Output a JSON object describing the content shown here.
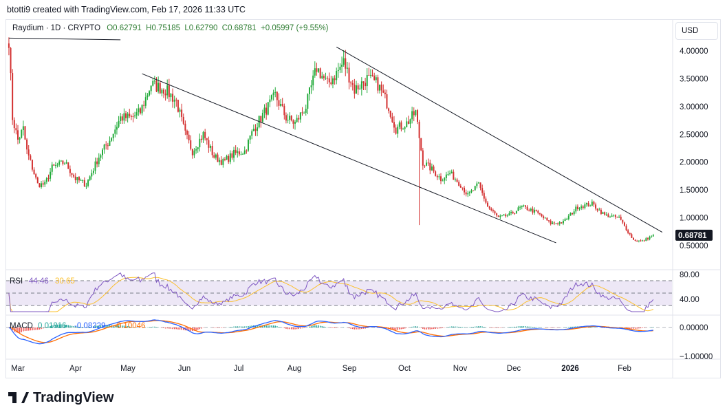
{
  "credit": "btotti9 created with TradingView.com, Feb 17, 2026 11:33 UTC",
  "legend": {
    "symbol": "Raydium · 1D · CRYPTO",
    "open": "O0.62791",
    "high": "H0.75185",
    "low": "L0.62790",
    "close": "C0.68781",
    "change": "+0.05997 (+9.55%)"
  },
  "currency_button": "USD",
  "last_price_label": "0.68781",
  "price_axis": [
    "4.00000",
    "3.50000",
    "3.00000",
    "2.50000",
    "2.00000",
    "1.50000",
    "1.00000",
    "0.50000"
  ],
  "rsi": {
    "label": "RSI",
    "value": "44.46",
    "ma_value": "30.65",
    "axis": [
      "80.00",
      "40.00"
    ],
    "levels": [
      70,
      50,
      30
    ]
  },
  "macd": {
    "label": "MACD",
    "hist": "0.01816",
    "macd": "-0.08229",
    "signal": "-0.10046",
    "axis": [
      "0.00000",
      "−1.00000"
    ]
  },
  "time_axis": [
    "Mar",
    "Apr",
    "May",
    "Jun",
    "Jul",
    "Aug",
    "Sep",
    "Oct",
    "Nov",
    "Dec",
    "2026",
    "Feb"
  ],
  "logo": "TradingView",
  "colors": {
    "up": "#22ab3a",
    "down": "#d32f2f",
    "rsi": "#7e57c2",
    "rsi_ma": "#fbc02d",
    "macd": "#2962ff",
    "signal": "#ff6d00",
    "rsi_band": "#ede7f6"
  },
  "chart_data": {
    "type": "candlestick",
    "symbol": "Raydium",
    "interval": "1D",
    "approx_close": [
      [
        "2025-02-24",
        4.2
      ],
      [
        "2025-02-26",
        2.8
      ],
      [
        "2025-03-01",
        2.4
      ],
      [
        "2025-03-04",
        2.6
      ],
      [
        "2025-03-06",
        2.2
      ],
      [
        "2025-03-12",
        1.6
      ],
      [
        "2025-03-16",
        1.6
      ],
      [
        "2025-03-20",
        1.9
      ],
      [
        "2025-03-27",
        2.0
      ],
      [
        "2025-04-02",
        1.7
      ],
      [
        "2025-04-08",
        1.6
      ],
      [
        "2025-04-15",
        2.1
      ],
      [
        "2025-04-21",
        2.4
      ],
      [
        "2025-04-27",
        2.8
      ],
      [
        "2025-05-03",
        2.8
      ],
      [
        "2025-05-08",
        2.9
      ],
      [
        "2025-05-14",
        3.4
      ],
      [
        "2025-05-22",
        3.3
      ],
      [
        "2025-05-28",
        3.1
      ],
      [
        "2025-06-02",
        2.5
      ],
      [
        "2025-06-06",
        2.2
      ],
      [
        "2025-06-12",
        2.5
      ],
      [
        "2025-06-18",
        2.1
      ],
      [
        "2025-06-23",
        2.0
      ],
      [
        "2025-06-29",
        2.15
      ],
      [
        "2025-07-05",
        2.2
      ],
      [
        "2025-07-10",
        2.6
      ],
      [
        "2025-07-16",
        2.9
      ],
      [
        "2025-07-22",
        3.2
      ],
      [
        "2025-07-28",
        2.8
      ],
      [
        "2025-08-02",
        2.7
      ],
      [
        "2025-08-08",
        3.0
      ],
      [
        "2025-08-14",
        3.7
      ],
      [
        "2025-08-20",
        3.4
      ],
      [
        "2025-08-25",
        3.6
      ],
      [
        "2025-08-29",
        3.8
      ],
      [
        "2025-09-04",
        3.3
      ],
      [
        "2025-09-11",
        3.5
      ],
      [
        "2025-09-17",
        3.4
      ],
      [
        "2025-09-23",
        3.0
      ],
      [
        "2025-09-27",
        2.6
      ],
      [
        "2025-10-03",
        2.7
      ],
      [
        "2025-10-08",
        2.9
      ],
      [
        "2025-10-12",
        2.0
      ],
      [
        "2025-10-16",
        1.9
      ],
      [
        "2025-10-22",
        1.7
      ],
      [
        "2025-10-27",
        1.8
      ],
      [
        "2025-11-02",
        1.6
      ],
      [
        "2025-11-06",
        1.4
      ],
      [
        "2025-11-12",
        1.6
      ],
      [
        "2025-11-17",
        1.2
      ],
      [
        "2025-11-23",
        1.0
      ],
      [
        "2025-11-29",
        1.05
      ],
      [
        "2025-12-06",
        1.2
      ],
      [
        "2025-12-14",
        1.1
      ],
      [
        "2025-12-22",
        0.9
      ],
      [
        "2025-12-29",
        0.92
      ],
      [
        "2026-01-06",
        1.2
      ],
      [
        "2026-01-14",
        1.25
      ],
      [
        "2026-01-21",
        1.05
      ],
      [
        "2026-01-29",
        1.0
      ],
      [
        "2026-02-06",
        0.6
      ],
      [
        "2026-02-11",
        0.58
      ],
      [
        "2026-02-17",
        0.68781
      ]
    ],
    "notable_wick": {
      "date": "2025-10-10",
      "low": 0.87
    },
    "trendlines": [
      [
        [
          "2025-02-24",
          4.23
        ],
        [
          "2025-04-27",
          4.2
        ]
      ],
      [
        [
          "2025-05-09",
          3.59
        ],
        [
          "2025-12-25",
          0.55
        ]
      ],
      [
        [
          "2025-08-25",
          4.07
        ],
        [
          "2026-02-22",
          0.74
        ]
      ]
    ],
    "ylim": [
      0.35,
      4.35
    ]
  }
}
